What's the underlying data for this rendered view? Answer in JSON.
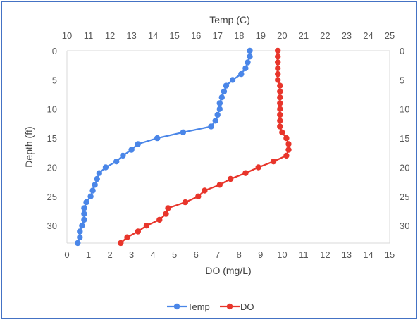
{
  "chart_data": {
    "type": "scatter",
    "top_axis_title": "Temp (C)",
    "bottom_axis_title": "DO (mg/L)",
    "left_axis_title": "Depth (ft)",
    "top_axis": {
      "min": 10,
      "max": 25,
      "ticks": [
        "10",
        "11",
        "12",
        "13",
        "14",
        "15",
        "16",
        "17",
        "18",
        "19",
        "20",
        "21",
        "22",
        "23",
        "24",
        "25"
      ]
    },
    "bottom_axis": {
      "min": 0,
      "max": 15,
      "ticks": [
        "0",
        "1",
        "2",
        "3",
        "4",
        "5",
        "6",
        "7",
        "8",
        "9",
        "10",
        "11",
        "12",
        "13",
        "14",
        "15"
      ]
    },
    "depth_axis": {
      "min": 0,
      "max": 33,
      "reversed": true,
      "ticks": [
        "0",
        "5",
        "10",
        "15",
        "20",
        "25",
        "30"
      ],
      "tick_values": [
        0,
        5,
        10,
        15,
        20,
        25,
        30
      ]
    },
    "grid": false,
    "legend_position": "bottom",
    "series": [
      {
        "name": "Temp",
        "axis": "top",
        "color": "#4a86e8",
        "points": [
          [
            18.5,
            0
          ],
          [
            18.5,
            1
          ],
          [
            18.4,
            2
          ],
          [
            18.3,
            3
          ],
          [
            18.1,
            4
          ],
          [
            17.7,
            5
          ],
          [
            17.4,
            6
          ],
          [
            17.3,
            7
          ],
          [
            17.2,
            8
          ],
          [
            17.1,
            9
          ],
          [
            17.1,
            10
          ],
          [
            17.0,
            11
          ],
          [
            16.9,
            12
          ],
          [
            16.7,
            13
          ],
          [
            15.4,
            14
          ],
          [
            14.2,
            15
          ],
          [
            13.3,
            16
          ],
          [
            13.0,
            17
          ],
          [
            12.6,
            18
          ],
          [
            12.3,
            19
          ],
          [
            11.8,
            20
          ],
          [
            11.5,
            21
          ],
          [
            11.4,
            22
          ],
          [
            11.3,
            23
          ],
          [
            11.2,
            24
          ],
          [
            11.1,
            25
          ],
          [
            10.9,
            26
          ],
          [
            10.8,
            27
          ],
          [
            10.8,
            28
          ],
          [
            10.8,
            29
          ],
          [
            10.7,
            30
          ],
          [
            10.6,
            31
          ],
          [
            10.6,
            32
          ],
          [
            10.5,
            33
          ]
        ]
      },
      {
        "name": "DO",
        "axis": "bottom",
        "color": "#e8352b",
        "points": [
          [
            9.8,
            0
          ],
          [
            9.8,
            1
          ],
          [
            9.8,
            2
          ],
          [
            9.8,
            3
          ],
          [
            9.8,
            4
          ],
          [
            9.8,
            5
          ],
          [
            9.9,
            6
          ],
          [
            9.9,
            7
          ],
          [
            9.9,
            8
          ],
          [
            9.9,
            9
          ],
          [
            9.9,
            10
          ],
          [
            9.9,
            11
          ],
          [
            9.9,
            12
          ],
          [
            9.9,
            13
          ],
          [
            10.0,
            14
          ],
          [
            10.2,
            15
          ],
          [
            10.3,
            16
          ],
          [
            10.3,
            17
          ],
          [
            10.2,
            18
          ],
          [
            9.6,
            19
          ],
          [
            8.9,
            20
          ],
          [
            8.3,
            21
          ],
          [
            7.6,
            22
          ],
          [
            7.1,
            23
          ],
          [
            6.4,
            24
          ],
          [
            6.1,
            25
          ],
          [
            5.5,
            26
          ],
          [
            4.7,
            27
          ],
          [
            4.6,
            28
          ],
          [
            4.3,
            29
          ],
          [
            3.7,
            30
          ],
          [
            3.3,
            31
          ],
          [
            2.8,
            32
          ],
          [
            2.5,
            33
          ]
        ]
      }
    ]
  }
}
